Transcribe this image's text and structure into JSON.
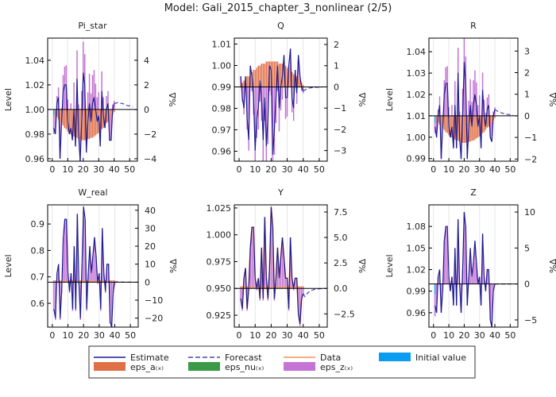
{
  "chart_data": {
    "type": "bar",
    "title": "Model: Gali_2015_chapter_3_nonlinear  (2/5)",
    "xlim": [
      -3,
      55
    ],
    "xticks": [
      0,
      10,
      20,
      30,
      40,
      50
    ],
    "left_axis_label": "Level",
    "right_axis_label": "%Δ",
    "legend": {
      "placement": "bottom",
      "entries": [
        {
          "key": "estimate",
          "label": "Estimate",
          "kind": "line",
          "color": "#1c1c8f"
        },
        {
          "key": "forecast",
          "label": "Forecast",
          "kind": "dash",
          "color": "#4848b0"
        },
        {
          "key": "data",
          "label": "Data",
          "kind": "line",
          "color": "#f5905a"
        },
        {
          "key": "initial",
          "label": "Initial value",
          "kind": "patch",
          "color": "#0a9cf0"
        },
        {
          "key": "eps_a",
          "label": "eps_a₍ₓ₎",
          "kind": "patch",
          "color": "#e07048"
        },
        {
          "key": "eps_nu",
          "label": "eps_nu₍ₓ₎",
          "kind": "patch",
          "color": "#3a9a48"
        },
        {
          "key": "eps_z",
          "label": "eps_z₍ₓ₎",
          "kind": "patch",
          "color": "#c374d4"
        }
      ]
    },
    "panels": [
      {
        "title": "Pi_star",
        "ss": 1.0,
        "ylim_pct": [
          -4.2,
          5.8
        ],
        "left_ticks": [
          "0.96",
          "0.98",
          "1.00",
          "1.02",
          "1.04"
        ],
        "right_ticks": [
          "-4",
          "-2",
          "0",
          "2",
          "4"
        ],
        "show_level_label": true,
        "initial": -0.5,
        "estimate": [
          -1.5,
          -2,
          0.5,
          1,
          -4,
          -1,
          1.5,
          2,
          2,
          -1,
          -2,
          -1.5,
          -2.5,
          0,
          -3,
          2.5,
          -2,
          -4.2,
          -1,
          3,
          2,
          -3.5,
          -1,
          0.5,
          -1,
          0.5,
          1,
          0,
          -1,
          -0.5,
          -3,
          1.5,
          -0.5,
          -1.5,
          0,
          0.5,
          -2.5,
          -2.5,
          0,
          0.5
        ],
        "eps_a": [
          -0.2,
          -0.4,
          -0.6,
          -0.8,
          -1,
          -1.1,
          -1.3,
          -1.5,
          -1.6,
          -1.8,
          -1.9,
          -2,
          -2.1,
          -2.2,
          -2.3,
          -2.3,
          -2.4,
          -2.4,
          -2.5,
          -2.5,
          -2.5,
          -2.5,
          -2.4,
          -2.4,
          -2.3,
          -2.3,
          -2.2,
          -2.1,
          -2,
          -1.9,
          -1.8,
          -1.6,
          -1.5,
          -1.3,
          -1.1,
          -1,
          -0.8,
          -0.6,
          -0.4,
          -0.2
        ],
        "eps_z": [
          -1.3,
          -1.6,
          1.1,
          1.8,
          -3,
          0.1,
          2.8,
          3.5,
          3.6,
          0.8,
          -0.1,
          0.5,
          -0.4,
          2.2,
          -0.7,
          4.8,
          0.4,
          -1.8,
          1.5,
          5.5,
          4.5,
          -1,
          1.4,
          2.9,
          1.3,
          2.8,
          3.2,
          2.1,
          1,
          1.4,
          -1.2,
          3.1,
          1,
          -0.2,
          1.1,
          1.5,
          -1.7,
          -1.9,
          0.4,
          0.7
        ],
        "forecast": [
          0.5,
          0.5,
          0.55,
          0.55,
          0.5,
          0.5,
          0.45,
          0.4,
          0.35,
          0.3,
          0.3,
          0.25,
          0.2
        ]
      },
      {
        "title": "Q",
        "ss": 0.99,
        "ylim_pct": [
          -3.5,
          2.3
        ],
        "left_ticks": [
          "0.96",
          "0.97",
          "0.98",
          "0.99",
          "1.00",
          "1.01"
        ],
        "right_ticks": [
          "-3",
          "-2",
          "-1",
          "0",
          "1",
          "2"
        ],
        "show_level_label": false,
        "initial": 0,
        "estimate": [
          0.5,
          -0.5,
          -1,
          0.5,
          -1.5,
          -2.5,
          1,
          0.5,
          -0.5,
          -3,
          -1.5,
          -1,
          0.3,
          -0.5,
          -2.5,
          -0.5,
          -2.8,
          -1.5,
          1,
          0.8,
          -3.2,
          -2,
          -0.5,
          1,
          -1,
          0,
          0.5,
          1.5,
          -0.5,
          -0.5,
          1,
          1.8,
          -0.5,
          -1,
          0.8,
          -0.3,
          1.5,
          0.5,
          0,
          -0.2
        ],
        "eps_a": [
          0.1,
          0.2,
          0.3,
          0.4,
          0.5,
          0.5,
          0.6,
          0.7,
          0.8,
          0.8,
          0.9,
          1,
          1,
          1.1,
          1.1,
          1.1,
          1.2,
          1.2,
          1.2,
          1.2,
          1.2,
          1.2,
          1.2,
          1.2,
          1.1,
          1.1,
          1.1,
          1,
          1,
          0.9,
          0.8,
          0.8,
          0.7,
          0.6,
          0.5,
          0.5,
          0.4,
          0.3,
          0.2,
          0.1
        ],
        "eps_z": [
          0.4,
          -0.7,
          -1.3,
          0.1,
          -2,
          -3,
          0.4,
          -0.2,
          -1.3,
          -3.8,
          -2.4,
          -2,
          -0.7,
          -1.6,
          -3.6,
          -1.6,
          -4,
          -2.7,
          -0.2,
          -0.4,
          -4.4,
          -3.2,
          -1.7,
          -0.2,
          -2.1,
          -1.1,
          -0.6,
          0.5,
          -1.5,
          -1.4,
          0.2,
          1,
          -1.2,
          -1.6,
          0.3,
          -0.8,
          1.1,
          0.2,
          -0.2,
          -0.3
        ],
        "forecast": [
          -0.2,
          -0.15,
          -0.1,
          -0.08,
          -0.05,
          -0.04,
          -0.03,
          -0.02,
          -0.02,
          -0.01,
          -0.01,
          0,
          0
        ]
      },
      {
        "title": "R",
        "ss": 1.01,
        "ylim_pct": [
          -2.1,
          3.6
        ],
        "left_ticks": [
          "0.99",
          "1.00",
          "1.01",
          "1.02",
          "1.03",
          "1.04"
        ],
        "right_ticks": [
          "-2",
          "-1",
          "0",
          "1",
          "2",
          "3"
        ],
        "show_level_label": true,
        "initial": -0.3,
        "estimate": [
          -0.5,
          -1,
          0,
          0.5,
          -2,
          -0.5,
          1,
          1.5,
          1.5,
          -0.5,
          -1,
          -0.5,
          -1.5,
          0.5,
          -1.5,
          2,
          -1,
          -2,
          0,
          2.5,
          1.5,
          -2,
          -0.5,
          0.5,
          -0.5,
          0.5,
          1,
          0.5,
          -0.5,
          0,
          -1.5,
          1.2,
          0,
          -0.5,
          0.3,
          0.5,
          -1,
          -1.2,
          0,
          0.3
        ],
        "eps_a": [
          -0.1,
          -0.2,
          -0.3,
          -0.4,
          -0.5,
          -0.55,
          -0.65,
          -0.75,
          -0.8,
          -0.9,
          -0.95,
          -1,
          -1.05,
          -1.1,
          -1.15,
          -1.15,
          -1.2,
          -1.2,
          -1.25,
          -1.25,
          -1.25,
          -1.25,
          -1.2,
          -1.2,
          -1.15,
          -1.15,
          -1.1,
          -1.05,
          -1,
          -0.95,
          -0.9,
          -0.8,
          -0.75,
          -0.65,
          -0.55,
          -0.5,
          -0.4,
          -0.3,
          -0.2,
          -0.1
        ],
        "eps_z": [
          -0.4,
          -0.8,
          0.3,
          0.9,
          -1.5,
          0.05,
          1.65,
          2.25,
          2.3,
          0.4,
          -0.05,
          0.5,
          -0.45,
          1.6,
          -0.35,
          3.15,
          0.2,
          -0.8,
          1.25,
          3.75,
          2.75,
          -0.75,
          0.7,
          1.7,
          0.65,
          1.65,
          2.1,
          1.55,
          0.5,
          0.95,
          -0.6,
          2,
          0.75,
          0.15,
          0.85,
          1,
          -0.6,
          -0.9,
          0.2,
          0.4
        ],
        "forecast": [
          0.3,
          0.25,
          0.2,
          0.18,
          0.15,
          0.12,
          0.1,
          0.08,
          0.07,
          0.06,
          0.05,
          0.04,
          0.03
        ]
      },
      {
        "title": "W_real",
        "ss": 0.68,
        "ylim_pct": [
          -25,
          43
        ],
        "left_ticks": [
          "0.6",
          "0.7",
          "0.8",
          "0.9"
        ],
        "right_ticks": [
          "-20",
          "-10",
          "0",
          "10",
          "20",
          "30",
          "40"
        ],
        "show_level_label": true,
        "initial": 0,
        "estimate": [
          -15,
          -20,
          5,
          10,
          -20,
          -5,
          25,
          35,
          35,
          5,
          -5,
          5,
          -15,
          20,
          -15,
          38,
          0,
          -20,
          10,
          42,
          35,
          -15,
          5,
          20,
          5,
          15,
          25,
          15,
          0,
          5,
          -15,
          30,
          5,
          -5,
          10,
          10,
          -22,
          -25,
          -5,
          0
        ],
        "eps_a": [
          1,
          1,
          1,
          1,
          1,
          1,
          1,
          1,
          1,
          1,
          1,
          1,
          1,
          1,
          1,
          1,
          1,
          1,
          1,
          1,
          1,
          1,
          1,
          1,
          1,
          1,
          1,
          1,
          1,
          1,
          1,
          1,
          1,
          1,
          1,
          1,
          1,
          1,
          1,
          1
        ],
        "eps_z": [
          -16,
          -21,
          4,
          9,
          -21,
          -6,
          24,
          34,
          34,
          4,
          -6,
          4,
          -16,
          19,
          -16,
          37,
          -1,
          -21,
          9,
          41,
          34,
          -16,
          4,
          19,
          4,
          14,
          24,
          14,
          -1,
          4,
          -16,
          29,
          4,
          -6,
          9,
          9,
          -23,
          -26,
          -6,
          -1
        ],
        "forecast": [
          0,
          0.2,
          0.2,
          0.1,
          0.1,
          0.05,
          0,
          0,
          0,
          0,
          0,
          0,
          0
        ]
      },
      {
        "title": "Y",
        "ss": 0.95,
        "ylim_pct": [
          -3.8,
          8.2
        ],
        "left_ticks": [
          "0.925",
          "0.950",
          "0.975",
          "1.000",
          "1.025"
        ],
        "right_ticks": [
          "-2.5",
          "0.0",
          "2.5",
          "5.0",
          "7.5"
        ],
        "show_level_label": false,
        "initial": 0,
        "estimate": [
          -1,
          -2,
          1,
          2,
          -2,
          0,
          4,
          6,
          6,
          1,
          0,
          1,
          -1,
          4,
          -1,
          7,
          1,
          -1,
          2,
          8,
          6,
          -1,
          1,
          4,
          1,
          3,
          5,
          3,
          1,
          1,
          -2,
          5,
          1,
          0,
          1,
          1,
          -2.5,
          -3.5,
          -1,
          -0.5
        ],
        "data": [
          -1,
          -2,
          1,
          2,
          -2,
          0,
          4,
          6,
          6,
          1,
          0,
          1,
          -1,
          4,
          -1,
          7,
          1,
          -1,
          2,
          8,
          6,
          -1,
          1,
          4,
          1,
          3,
          5,
          3,
          1,
          1,
          -2,
          5,
          1,
          0,
          1,
          1,
          -2.5,
          -3.5,
          -1,
          -0.5
        ],
        "eps_a": [
          0.2,
          0.2,
          0.2,
          0.2,
          0.2,
          0.2,
          0.2,
          0.2,
          0.2,
          0.2,
          0.2,
          0.2,
          0.2,
          0.2,
          0.2,
          0.2,
          0.2,
          0.2,
          0.2,
          0.2,
          0.2,
          0.2,
          0.2,
          0.2,
          0.2,
          0.2,
          0.2,
          0.2,
          0.2,
          0.2,
          0.2,
          0.2,
          0.2,
          0.2,
          0.2,
          0.2,
          0.2,
          0.2,
          0.2,
          0.2
        ],
        "eps_z": [
          -1.2,
          -2.2,
          0.8,
          1.8,
          -2.2,
          -0.2,
          3.8,
          5.8,
          5.8,
          0.8,
          -0.2,
          0.8,
          -1.2,
          3.8,
          -1.2,
          6.8,
          0.8,
          -1.2,
          1.8,
          7.8,
          5.8,
          -1.2,
          0.8,
          3.8,
          0.8,
          2.8,
          4.8,
          2.8,
          0.8,
          0.8,
          -2.2,
          4.8,
          0.8,
          -0.2,
          0.8,
          0.8,
          -2.7,
          -3.7,
          -1.2,
          -0.7
        ],
        "forecast": [
          -0.5,
          -0.8,
          -0.6,
          -0.4,
          -0.3,
          -0.2,
          -0.15,
          -0.1,
          -0.08,
          -0.05,
          -0.04,
          -0.03,
          -0.02
        ]
      },
      {
        "title": "Z",
        "ss": 1.0,
        "ylim_pct": [
          -6,
          11
        ],
        "left_ticks": [
          "0.96",
          "0.99",
          "1.02",
          "1.05",
          "1.08"
        ],
        "right_ticks": [
          "-5",
          "0",
          "5",
          "10"
        ],
        "show_level_label": true,
        "initial": -1.5,
        "estimate": [
          -3,
          -4,
          1,
          2,
          -4,
          -1,
          6,
          8,
          8,
          1,
          -1,
          1,
          -3,
          5,
          -3,
          9,
          0,
          -4,
          2,
          10,
          8,
          -3,
          1,
          5,
          1,
          3,
          6,
          3,
          0,
          1,
          -3,
          7,
          1,
          -1,
          2,
          2,
          -5,
          -6,
          -1,
          0
        ],
        "eps_a": [
          0,
          0,
          0,
          0,
          0,
          0,
          0,
          0,
          0,
          0,
          0,
          0,
          0,
          0,
          0,
          0,
          0,
          0,
          0,
          0,
          0,
          0,
          0,
          0,
          0,
          0,
          0,
          0,
          0,
          0,
          0,
          0,
          0,
          0,
          0,
          0,
          0,
          0,
          0,
          0
        ],
        "eps_z": [
          -3,
          -4,
          1,
          2,
          -4,
          -1,
          6,
          8,
          8,
          1,
          -1,
          1,
          -3,
          5,
          -3,
          9,
          0,
          -4,
          2,
          10,
          8,
          -3,
          1,
          5,
          1,
          3,
          6,
          3,
          0,
          1,
          -3,
          7,
          1,
          -1,
          2,
          2,
          -5,
          -6,
          -1,
          0
        ],
        "forecast": [
          0,
          0,
          0,
          0,
          0,
          0,
          0,
          0,
          0,
          0,
          0,
          0,
          0
        ]
      }
    ]
  }
}
